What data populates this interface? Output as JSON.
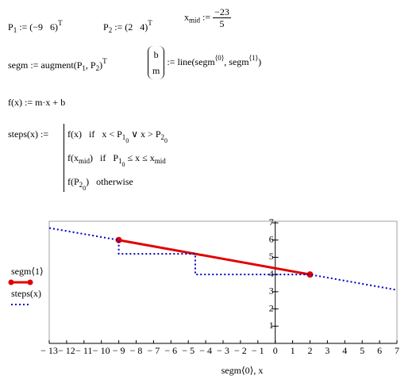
{
  "math": {
    "p1": [
      "P",
      "1",
      " := (−9   6)",
      "T"
    ],
    "p2": [
      "P",
      "2",
      " := (2   4)",
      "T"
    ],
    "xmid": [
      "x",
      "mid",
      " := ",
      "−23",
      "5"
    ],
    "segm": [
      "segm := augment(P",
      "1",
      ", P",
      "2",
      ")",
      "T"
    ],
    "line": [
      "b",
      "m",
      " := line(segm",
      "⟨0⟩",
      ", segm",
      "⟨1⟩",
      ")"
    ],
    "f": [
      "f(x) := m·x + b"
    ],
    "steps": [
      "steps(x) := "
    ],
    "row0": [
      "f(x)   if   x < P",
      "1",
      "0",
      " ∨ x > P",
      "2",
      "0"
    ],
    "row1": [
      "f(x",
      "mid",
      ")   if   P",
      "1",
      "0",
      " ≤ x ≤ x",
      "mid"
    ],
    "row2": [
      "f(P",
      "2",
      "0",
      ")   otherwise"
    ]
  },
  "chart_data": {
    "type": "line",
    "x_label": "segm⟨0⟩, x",
    "xlim": [
      -13,
      7
    ],
    "ylim": [
      0,
      7
    ],
    "xticks": [
      {
        "value": -13,
        "label": "− 13"
      },
      {
        "value": -12,
        "label": "− 12"
      },
      {
        "value": -11,
        "label": "− 11"
      },
      {
        "value": -10,
        "label": "− 10"
      },
      {
        "value": -9,
        "label": "− 9"
      },
      {
        "value": -8,
        "label": "− 8"
      },
      {
        "value": -7,
        "label": "− 7"
      },
      {
        "value": -6,
        "label": "− 6"
      },
      {
        "value": -5,
        "label": "− 5"
      },
      {
        "value": -4,
        "label": "− 4"
      },
      {
        "value": -3,
        "label": "− 3"
      },
      {
        "value": -2,
        "label": "− 2"
      },
      {
        "value": -1,
        "label": "− 1"
      },
      0,
      1,
      2,
      3,
      4,
      5,
      6,
      7
    ],
    "yticks": [
      1,
      2,
      3,
      4,
      5,
      6,
      7
    ],
    "legend": "left",
    "series": [
      {
        "name": "segm⟨1⟩",
        "color": "#e00000",
        "style": "solid",
        "markers": true,
        "x": [
          -9,
          2
        ],
        "values": [
          6,
          4
        ]
      },
      {
        "name": "steps(x)",
        "color": "#0000c0",
        "style": "dotted",
        "markers": false,
        "x": [
          -13,
          -9,
          -9,
          -4.6,
          -4.6,
          2,
          7
        ],
        "values": [
          6.7,
          6,
          5.2,
          5.2,
          4,
          4,
          3.1
        ]
      }
    ]
  }
}
